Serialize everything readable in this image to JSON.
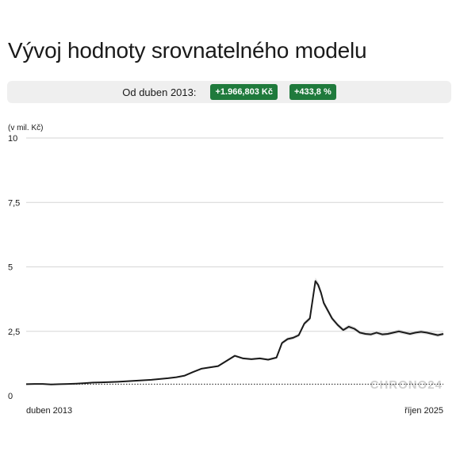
{
  "title": "Vývoj hodnoty srovnatelného modelu",
  "summary": {
    "label": "Od duben 2013:",
    "change_abs": "+1.966,803 Kč",
    "change_pct": "+433,8 %"
  },
  "colors": {
    "line": "#1a1a1a",
    "band": "#e2e2e2",
    "grid": "#d6d6d6",
    "badge": "#1f7a3c",
    "watermark": "#cfcfcf"
  },
  "watermark": "CHRONO24",
  "chart_data": {
    "type": "line",
    "ylabel": "(v mil. Kč)",
    "ylim": [
      0,
      10
    ],
    "yticks": [
      "0",
      "2,5",
      "5",
      "7,5",
      "10"
    ],
    "ytick_values": [
      0,
      2.5,
      5,
      7.5,
      10
    ],
    "grid": true,
    "xlabels": [
      "duben 2013",
      "říjen 2025"
    ],
    "x_start": "2013-04",
    "x_end": "2025-10",
    "baseline": 0.45,
    "series": [
      {
        "x": [
          "2013-04",
          "2013-07",
          "2013-10",
          "2014-01",
          "2014-04",
          "2014-07",
          "2014-10",
          "2015-01",
          "2015-04",
          "2015-07",
          "2015-10",
          "2016-01",
          "2016-04",
          "2016-07",
          "2016-10",
          "2017-01",
          "2017-04",
          "2017-07",
          "2017-10",
          "2018-01",
          "2018-04",
          "2018-07",
          "2018-10",
          "2019-01",
          "2019-04",
          "2019-07",
          "2019-10",
          "2020-01",
          "2020-04",
          "2020-07",
          "2020-10",
          "2020-12",
          "2021-02",
          "2021-04",
          "2021-06",
          "2021-08",
          "2021-10",
          "2021-12",
          "2022-01",
          "2022-02",
          "2022-03",
          "2022-04",
          "2022-05",
          "2022-06",
          "2022-08",
          "2022-10",
          "2022-12",
          "2023-02",
          "2023-04",
          "2023-06",
          "2023-08",
          "2023-10",
          "2023-12",
          "2024-02",
          "2024-04",
          "2024-06",
          "2024-08",
          "2024-10",
          "2024-12",
          "2025-02",
          "2025-04",
          "2025-06",
          "2025-08",
          "2025-10"
        ],
        "values": [
          0.45,
          0.46,
          0.46,
          0.44,
          0.45,
          0.46,
          0.47,
          0.49,
          0.51,
          0.52,
          0.53,
          0.54,
          0.56,
          0.58,
          0.6,
          0.62,
          0.65,
          0.68,
          0.72,
          0.78,
          0.92,
          1.05,
          1.1,
          1.15,
          1.35,
          1.55,
          1.45,
          1.42,
          1.45,
          1.4,
          1.48,
          2.05,
          2.2,
          2.25,
          2.35,
          2.8,
          3.0,
          4.45,
          4.3,
          4.0,
          3.6,
          3.4,
          3.2,
          3.0,
          2.75,
          2.55,
          2.68,
          2.6,
          2.45,
          2.4,
          2.38,
          2.45,
          2.38,
          2.4,
          2.45,
          2.5,
          2.45,
          2.4,
          2.45,
          2.48,
          2.45,
          2.4,
          2.35,
          2.4
        ]
      }
    ]
  }
}
